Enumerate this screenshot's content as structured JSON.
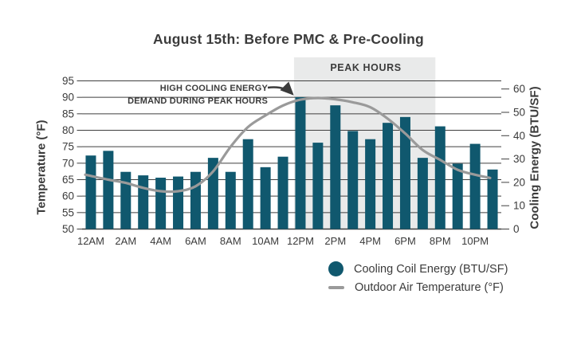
{
  "title": "August 15th: Before PMC & Pre-Cooling",
  "annotation": {
    "line1": "HIGH COOLING ENERGY",
    "line2": "DEMAND DURING PEAK HOURS"
  },
  "peak_band": {
    "label": "PEAK HOURS"
  },
  "axes": {
    "left": {
      "title": "Temperature (°F)",
      "ticks": [
        95,
        90,
        85,
        80,
        75,
        70,
        65,
        60,
        55,
        50
      ]
    },
    "right": {
      "title": "Cooling Energy (BTU/SF)",
      "ticks": [
        60,
        50,
        40,
        30,
        20,
        10,
        0
      ]
    },
    "x": {
      "labels": [
        "12AM",
        "2AM",
        "4AM",
        "6AM",
        "8AM",
        "10AM",
        "12PM",
        "2PM",
        "4PM",
        "6PM",
        "8PM",
        "10PM"
      ]
    }
  },
  "legend": [
    {
      "marker": "circle",
      "label": "Cooling Coil Energy (BTU/SF)"
    },
    {
      "marker": "line",
      "label": "Outdoor Air Temperature (°F)"
    }
  ],
  "colors": {
    "bar": "#10586E",
    "line": "#9a9a9a",
    "band": "#e9eaea",
    "grid": "#3f3f3f",
    "text": "#3b3b3b"
  },
  "chart_data": {
    "type": "bar",
    "title": "August 15th: Before PMC & Pre-Cooling",
    "categories": [
      "12AM",
      "1AM",
      "2AM",
      "3AM",
      "4AM",
      "5AM",
      "6AM",
      "7AM",
      "8AM",
      "9AM",
      "10AM",
      "11AM",
      "12PM",
      "1PM",
      "2PM",
      "3PM",
      "4PM",
      "5PM",
      "6PM",
      "7PM",
      "8PM",
      "9PM",
      "10PM",
      "11PM"
    ],
    "series": [
      {
        "name": "Cooling Coil Energy (BTU/SF)",
        "type": "bar",
        "axis": "right",
        "values": [
          31.5,
          33.5,
          24.5,
          23,
          22,
          22.5,
          24.5,
          30.5,
          24.5,
          38.5,
          26.5,
          31,
          56.5,
          37,
          53,
          42,
          38.5,
          45.5,
          48,
          30.5,
          44,
          28,
          36.5,
          25.5
        ]
      },
      {
        "name": "Outdoor Air Temperature (°F)",
        "type": "line",
        "axis": "left",
        "values": [
          66.5,
          65,
          64,
          62.5,
          61.5,
          61.5,
          63,
          67.5,
          75,
          81,
          84.5,
          87.5,
          89.3,
          89.8,
          89.4,
          88.5,
          87,
          83.5,
          79,
          74,
          71,
          68,
          66.5,
          65.5
        ]
      }
    ],
    "left_ylabel": "Temperature (°F)",
    "right_ylabel": "Cooling Energy (BTU/SF)",
    "left_ylim": [
      50,
      95
    ],
    "right_ylim": [
      0,
      60
    ],
    "grid": true,
    "legend_position": "bottom-right",
    "peak_hours": {
      "from": "12PM",
      "to": "8PM",
      "label": "PEAK HOURS"
    }
  }
}
